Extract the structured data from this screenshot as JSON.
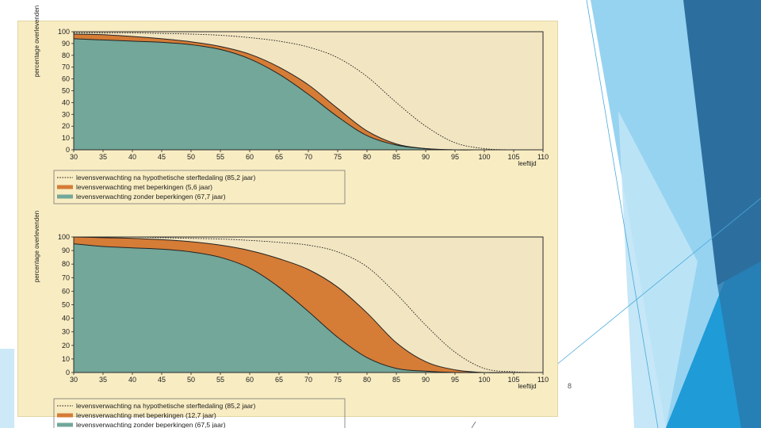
{
  "slide": {
    "page_number": "8",
    "colors": {
      "background": "#ffffff",
      "figure_bg": "#f8ecc2",
      "plot_bg": "#f2e6c2",
      "without_limitations": "#72a799",
      "with_limitations": "#d57c36",
      "theoretical_line": "#1a1a1a",
      "accent_dark": "#2c6f9e",
      "accent_mid": "#1f9bd7",
      "accent_light": "#7cc8ee"
    }
  },
  "chart_data": [
    {
      "type": "area",
      "title": "",
      "ylabel": "percentage overlevenden",
      "xlabel": "leeftijd",
      "x": [
        30,
        35,
        40,
        45,
        50,
        55,
        60,
        65,
        70,
        75,
        80,
        85,
        90,
        95,
        100,
        105,
        110
      ],
      "x_tick_labels": [
        "30",
        "35",
        "40",
        "45",
        "50",
        "55",
        "60",
        "65",
        "70",
        "75",
        "80",
        "85",
        "90",
        "95",
        "100",
        "105",
        "110"
      ],
      "y_ticks": [
        0,
        10,
        20,
        30,
        40,
        50,
        60,
        70,
        80,
        90,
        100
      ],
      "xlim": [
        30,
        110
      ],
      "ylim": [
        0,
        100
      ],
      "legend_position": "below",
      "series": [
        {
          "name": "levensverwachting na hypothetische sterftedaling (85,2 jaar)",
          "style": "dashed-line",
          "color": "#1a1a1a",
          "values": [
            99,
            99,
            99,
            98.5,
            98,
            97,
            95,
            92,
            87,
            78,
            62,
            40,
            20,
            6,
            1,
            0,
            0
          ]
        },
        {
          "name": "levensverwachting met beperkingen (5,6 jaar)",
          "style": "band",
          "color": "#d57c36",
          "values": [
            98,
            97.5,
            96,
            94,
            91.5,
            87.5,
            81,
            70,
            55,
            35,
            16,
            5,
            1,
            0,
            0,
            0,
            0
          ]
        },
        {
          "name": "levensverwachting zonder beperkingen (67,7 jaar)",
          "style": "area",
          "color": "#72a799",
          "values": [
            94,
            93,
            92,
            91,
            89,
            85,
            77,
            64,
            47,
            28,
            12,
            4,
            1,
            0,
            0,
            0,
            0
          ]
        }
      ]
    },
    {
      "type": "area",
      "title": "",
      "ylabel": "percentage overlevenden",
      "xlabel": "leeftijd",
      "x": [
        30,
        35,
        40,
        45,
        50,
        55,
        60,
        65,
        70,
        75,
        80,
        85,
        90,
        95,
        100,
        105,
        110
      ],
      "x_tick_labels": [
        "30",
        "35",
        "40",
        "45",
        "50",
        "55",
        "60",
        "65",
        "70",
        "75",
        "80",
        "85",
        "90",
        "95",
        "100",
        "105",
        "110"
      ],
      "y_ticks": [
        0,
        10,
        20,
        30,
        40,
        50,
        60,
        70,
        80,
        90,
        100
      ],
      "xlim": [
        30,
        110
      ],
      "ylim": [
        0,
        100
      ],
      "legend_position": "below",
      "series": [
        {
          "name": "levensverwachting na hypothetische sterftedaling (85,2 jaar)",
          "style": "dashed-line",
          "color": "#1a1a1a",
          "values": [
            100,
            100,
            100,
            99.5,
            99,
            98.5,
            97.5,
            96,
            94,
            89,
            78,
            58,
            35,
            15,
            3,
            0.5,
            0
          ]
        },
        {
          "name": "levensverwachting met beperkingen (12,7 jaar)",
          "style": "band",
          "color": "#d57c36",
          "values": [
            100,
            99.5,
            99,
            98,
            96.5,
            94,
            90,
            84,
            76,
            63,
            44,
            22,
            8,
            2,
            0,
            0,
            0
          ]
        },
        {
          "name": "levensverwachting zonder beperkingen (67,5 jaar)",
          "style": "area",
          "color": "#72a799",
          "values": [
            95,
            93,
            92,
            91,
            89,
            85,
            77,
            63,
            45,
            26,
            11,
            3,
            1,
            0,
            0,
            0,
            0
          ]
        }
      ]
    }
  ]
}
